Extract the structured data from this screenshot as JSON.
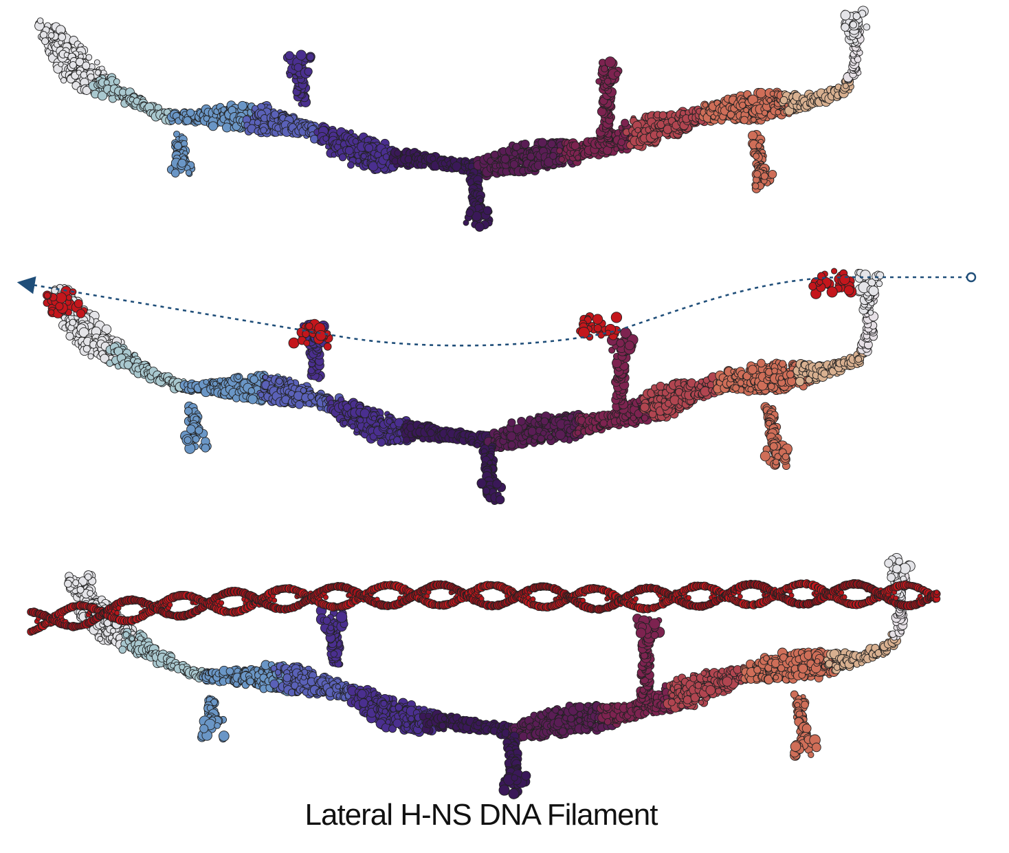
{
  "caption": "Lateral H-NS DNA Filament",
  "colors": {
    "dna_red": "#c4161c",
    "path_line": "#1f4e79",
    "palette": [
      "#e4e4e8",
      "#a9c8cf",
      "#6a96c6",
      "#5a61b8",
      "#4a2f8f",
      "#3a1858",
      "#5a1d55",
      "#7d2350",
      "#b14550",
      "#cf6e58",
      "#d8b090",
      "#e6e0e6"
    ],
    "outline": "#222222"
  },
  "panels": [
    {
      "id": "protein-filament",
      "label": ""
    },
    {
      "id": "protein-filament-with-dna-binding-sites",
      "label": ""
    },
    {
      "id": "protein-filament-bound-to-dna",
      "label": ""
    }
  ]
}
